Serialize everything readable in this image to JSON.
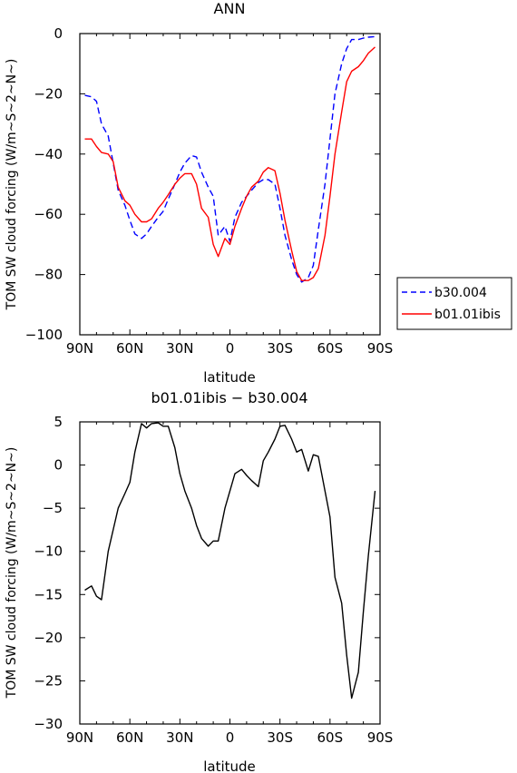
{
  "chart_data": [
    {
      "type": "line",
      "title": "ANN",
      "xlabel": "latitude",
      "ylabel": "TOM SW cloud forcing (W/m~S~2~N~)",
      "x_ticks": [
        "90N",
        "60N",
        "30N",
        "0",
        "30S",
        "60S",
        "90S"
      ],
      "y_ticks": [
        "0",
        "−20",
        "−40",
        "−60",
        "−80",
        "−100"
      ],
      "xlim": [
        90,
        -90
      ],
      "ylim": [
        -100,
        0
      ],
      "legend_placement": "right, outside plot",
      "x": [
        87,
        83,
        80,
        77,
        73,
        70,
        67,
        63,
        60,
        57,
        53,
        50,
        47,
        43,
        40,
        37,
        33,
        30,
        27,
        23,
        20,
        17,
        13,
        10,
        7,
        3,
        0,
        -3,
        -7,
        -10,
        -13,
        -17,
        -20,
        -23,
        -27,
        -30,
        -33,
        -37,
        -40,
        -43,
        -47,
        -50,
        -53,
        -57,
        -60,
        -63,
        -67,
        -70,
        -73,
        -77,
        -80,
        -83,
        -87
      ],
      "series": [
        {
          "name": "b30.004",
          "color": "#0000ff",
          "dash": "dashed",
          "values": [
            -20.5,
            -21,
            -22.5,
            -30,
            -34,
            -43,
            -52,
            -57,
            -62,
            -66.5,
            -68,
            -66.5,
            -64,
            -61,
            -59,
            -55,
            -50,
            -46,
            -43,
            -40.5,
            -41,
            -46,
            -51,
            -54,
            -67,
            -64,
            -69,
            -61,
            -56,
            -54,
            -52,
            -49.5,
            -48.5,
            -48.5,
            -50,
            -58,
            -67,
            -75,
            -80,
            -82.5,
            -81,
            -77,
            -65,
            -50,
            -35,
            -20,
            -10,
            -5,
            -2,
            -2,
            -1.5,
            -1.2,
            -1
          ]
        },
        {
          "name": "b01.01ibis",
          "color": "#ff0000",
          "dash": "solid",
          "values": [
            -35,
            -35,
            -37.5,
            -39.5,
            -40,
            -42.5,
            -51,
            -55.5,
            -57,
            -60,
            -62.5,
            -62.5,
            -61.5,
            -58,
            -56,
            -53.5,
            -50,
            -48,
            -46.5,
            -46.5,
            -50,
            -58,
            -61,
            -70,
            -74,
            -68,
            -70,
            -64,
            -58,
            -54,
            -51,
            -49,
            -46,
            -44.5,
            -45.5,
            -53,
            -62,
            -72,
            -79,
            -82,
            -82,
            -81,
            -78,
            -67,
            -54,
            -40,
            -26,
            -16,
            -12.5,
            -11,
            -9,
            -6.5,
            -4.5
          ]
        }
      ]
    },
    {
      "type": "line",
      "title": "b01.01ibis − b30.004",
      "xlabel": "latitude",
      "ylabel": "TOM SW cloud forcing (W/m~S~2~N~)",
      "x_ticks": [
        "90N",
        "60N",
        "30N",
        "0",
        "30S",
        "60S",
        "90S"
      ],
      "y_ticks": [
        "5",
        "0",
        "−5",
        "−10",
        "−15",
        "−20",
        "−25",
        "−30"
      ],
      "xlim": [
        90,
        -90
      ],
      "ylim": [
        -30,
        5
      ],
      "x": [
        87,
        83,
        80,
        77,
        73,
        70,
        67,
        63,
        60,
        57,
        53,
        50,
        47,
        43,
        40,
        37,
        33,
        30,
        27,
        23,
        20,
        17,
        13,
        10,
        7,
        3,
        0,
        -3,
        -7,
        -10,
        -13,
        -17,
        -20,
        -23,
        -27,
        -30,
        -33,
        -37,
        -40,
        -43,
        -47,
        -50,
        -53,
        -57,
        -60,
        -63,
        -67,
        -70,
        -73,
        -77,
        -80,
        -83,
        -87
      ],
      "series": [
        {
          "color": "#000000",
          "dash": "solid",
          "values": [
            -14.5,
            -14,
            -15.2,
            -15.6,
            -10,
            -7.5,
            -5,
            -3.3,
            -2,
            1.5,
            4.8,
            4.3,
            4.8,
            4.9,
            4.5,
            4.5,
            2,
            -1,
            -3,
            -5,
            -7,
            -8.5,
            -9.4,
            -8.8,
            -8.8,
            -5,
            -3,
            -1,
            -0.5,
            -1.2,
            -1.8,
            -2.5,
            0.5,
            1.5,
            3,
            4.5,
            4.6,
            3,
            1.5,
            1.8,
            -0.7,
            1.2,
            1,
            -3,
            -6,
            -13,
            -16,
            -22,
            -27,
            -24,
            -17,
            -10.5,
            -3
          ]
        }
      ]
    }
  ]
}
